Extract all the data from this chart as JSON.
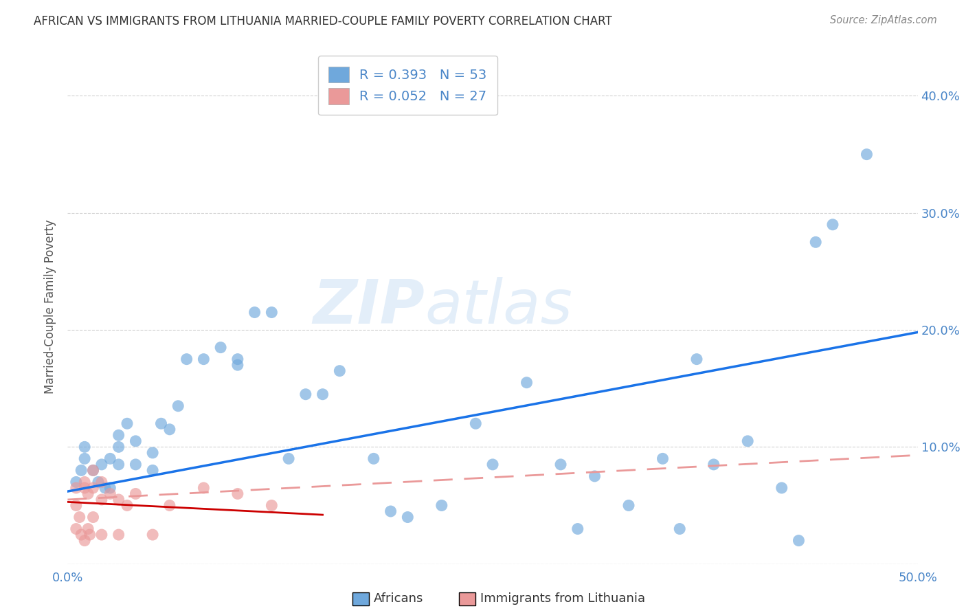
{
  "title": "AFRICAN VS IMMIGRANTS FROM LITHUANIA MARRIED-COUPLE FAMILY POVERTY CORRELATION CHART",
  "source": "Source: ZipAtlas.com",
  "ylabel": "Married-Couple Family Poverty",
  "xlim": [
    0.0,
    0.5
  ],
  "ylim": [
    0.0,
    0.44
  ],
  "color_african": "#6fa8dc",
  "color_lithuania": "#ea9999",
  "trendline_color_african": "#1a73e8",
  "trendline_color_lithuania": "#cc0000",
  "trendline_dashed_color": "#ea9999",
  "background_color": "#ffffff",
  "legend_label1": "R = 0.393   N = 53",
  "legend_label2": "R = 0.052   N = 27",
  "africans_x": [
    0.005,
    0.008,
    0.01,
    0.01,
    0.015,
    0.018,
    0.02,
    0.022,
    0.025,
    0.025,
    0.03,
    0.03,
    0.03,
    0.035,
    0.04,
    0.04,
    0.05,
    0.05,
    0.055,
    0.06,
    0.065,
    0.07,
    0.08,
    0.09,
    0.1,
    0.1,
    0.11,
    0.12,
    0.13,
    0.14,
    0.15,
    0.16,
    0.18,
    0.19,
    0.2,
    0.22,
    0.24,
    0.25,
    0.27,
    0.29,
    0.3,
    0.31,
    0.33,
    0.35,
    0.36,
    0.37,
    0.38,
    0.4,
    0.42,
    0.43,
    0.44,
    0.45,
    0.47
  ],
  "africans_y": [
    0.07,
    0.08,
    0.09,
    0.1,
    0.08,
    0.07,
    0.085,
    0.065,
    0.065,
    0.09,
    0.085,
    0.1,
    0.11,
    0.12,
    0.085,
    0.105,
    0.08,
    0.095,
    0.12,
    0.115,
    0.135,
    0.175,
    0.175,
    0.185,
    0.17,
    0.175,
    0.215,
    0.215,
    0.09,
    0.145,
    0.145,
    0.165,
    0.09,
    0.045,
    0.04,
    0.05,
    0.12,
    0.085,
    0.155,
    0.085,
    0.03,
    0.075,
    0.05,
    0.09,
    0.03,
    0.175,
    0.085,
    0.105,
    0.065,
    0.02,
    0.275,
    0.29,
    0.35
  ],
  "lithuania_x": [
    0.005,
    0.005,
    0.005,
    0.007,
    0.008,
    0.01,
    0.01,
    0.01,
    0.012,
    0.012,
    0.013,
    0.015,
    0.015,
    0.015,
    0.02,
    0.02,
    0.02,
    0.025,
    0.03,
    0.03,
    0.035,
    0.04,
    0.05,
    0.06,
    0.08,
    0.1,
    0.12
  ],
  "lithuania_y": [
    0.05,
    0.065,
    0.03,
    0.04,
    0.025,
    0.07,
    0.065,
    0.02,
    0.06,
    0.03,
    0.025,
    0.08,
    0.065,
    0.04,
    0.07,
    0.055,
    0.025,
    0.06,
    0.055,
    0.025,
    0.05,
    0.06,
    0.025,
    0.05,
    0.065,
    0.06,
    0.05
  ],
  "trendline_african_x0": 0.0,
  "trendline_african_y0": 0.062,
  "trendline_african_x1": 0.5,
  "trendline_african_y1": 0.198,
  "trendline_lithuania_solid_x0": 0.0,
  "trendline_lithuania_solid_y0": 0.053,
  "trendline_lithuania_solid_x1": 0.15,
  "trendline_lithuania_solid_y1": 0.042,
  "trendline_lithuania_dashed_x0": 0.0,
  "trendline_lithuania_dashed_y0": 0.055,
  "trendline_lithuania_dashed_x1": 0.5,
  "trendline_lithuania_dashed_y1": 0.093
}
